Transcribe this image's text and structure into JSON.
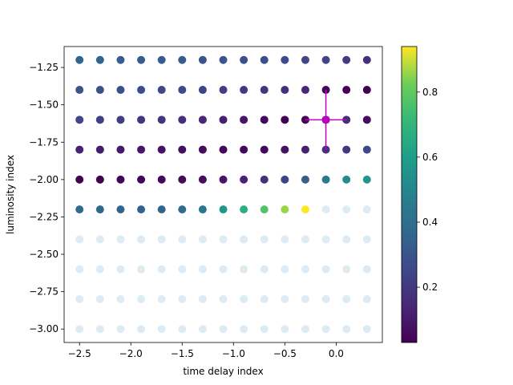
{
  "chart_data": {
    "type": "scatter",
    "xlabel": "time delay index",
    "ylabel": "luminosity index",
    "xlim": [
      -2.65,
      0.45
    ],
    "ylim": [
      -3.09,
      -1.11
    ],
    "xticks": [
      -2.5,
      -2.0,
      -1.5,
      -1.0,
      -0.5,
      0.0
    ],
    "xtick_labels": [
      "−2.5",
      "−2.0",
      "−1.5",
      "−1.0",
      "−0.5",
      "0.0"
    ],
    "yticks": [
      -1.25,
      -1.5,
      -1.75,
      -2.0,
      -2.25,
      -2.5,
      -2.75,
      -3.0
    ],
    "ytick_labels": [
      "−1.25",
      "−1.50",
      "−1.75",
      "−2.00",
      "−2.25",
      "−2.50",
      "−2.75",
      "−3.00"
    ],
    "x": [
      -2.5,
      -2.3,
      -2.1,
      -1.9,
      -1.7,
      -1.5,
      -1.3,
      -1.1,
      -0.9,
      -0.7,
      -0.5,
      -0.3,
      -0.1,
      0.1,
      0.3
    ],
    "y": [
      -1.2,
      -1.4,
      -1.6,
      -1.8,
      -2.0,
      -2.2
    ],
    "values": [
      [
        0.36,
        0.36,
        0.33,
        0.33,
        0.33,
        0.33,
        0.3,
        0.3,
        0.28,
        0.28,
        0.26,
        0.25,
        0.24,
        0.21,
        0.17
      ],
      [
        0.3,
        0.29,
        0.28,
        0.27,
        0.25,
        0.26,
        0.24,
        0.22,
        0.2,
        0.19,
        0.17,
        0.14,
        0.05,
        0.03,
        0.02
      ],
      [
        0.25,
        0.23,
        0.22,
        0.2,
        0.19,
        0.17,
        0.14,
        0.12,
        0.09,
        0.05,
        0.03,
        0.04,
        0.17,
        0.16,
        0.06
      ],
      [
        0.13,
        0.11,
        0.1,
        0.09,
        0.08,
        0.07,
        0.06,
        0.05,
        0.05,
        0.05,
        0.08,
        0.12,
        0.18,
        0.2,
        0.25
      ],
      [
        0.03,
        0.03,
        0.04,
        0.04,
        0.05,
        0.06,
        0.07,
        0.09,
        0.13,
        0.17,
        0.24,
        0.34,
        0.45,
        0.53,
        0.57
      ],
      [
        0.38,
        0.37,
        0.36,
        0.35,
        0.36,
        0.38,
        0.44,
        0.57,
        0.67,
        0.77,
        0.86,
        0.94,
        null,
        null,
        null
      ]
    ],
    "faded_points": {
      "x": [
        -2.5,
        -2.3,
        -2.1,
        -1.9,
        -1.7,
        -1.5,
        -1.3,
        -1.1,
        -0.9,
        -0.7,
        -0.5,
        -0.3,
        -0.1,
        0.1,
        0.3
      ],
      "y_top_row": [
        -2.2
      ],
      "y_top_row_x": [
        -0.1,
        0.1,
        0.3
      ],
      "y_full_rows": [
        -2.4,
        -2.6,
        -2.8,
        -3.0
      ]
    },
    "marker": {
      "x": -0.1,
      "y": -1.6,
      "xerr": 0.2,
      "yerr": 0.2
    },
    "colormap": "viridis",
    "colorbar": {
      "vmin": 0.03,
      "vmax": 0.94,
      "ticks": [
        0.2,
        0.4,
        0.6,
        0.8
      ],
      "tick_labels": [
        "0.2",
        "0.4",
        "0.6",
        "0.8"
      ]
    },
    "grid": false,
    "colors": {
      "marker": "#c000c0",
      "faded": "#ddebf5"
    }
  }
}
